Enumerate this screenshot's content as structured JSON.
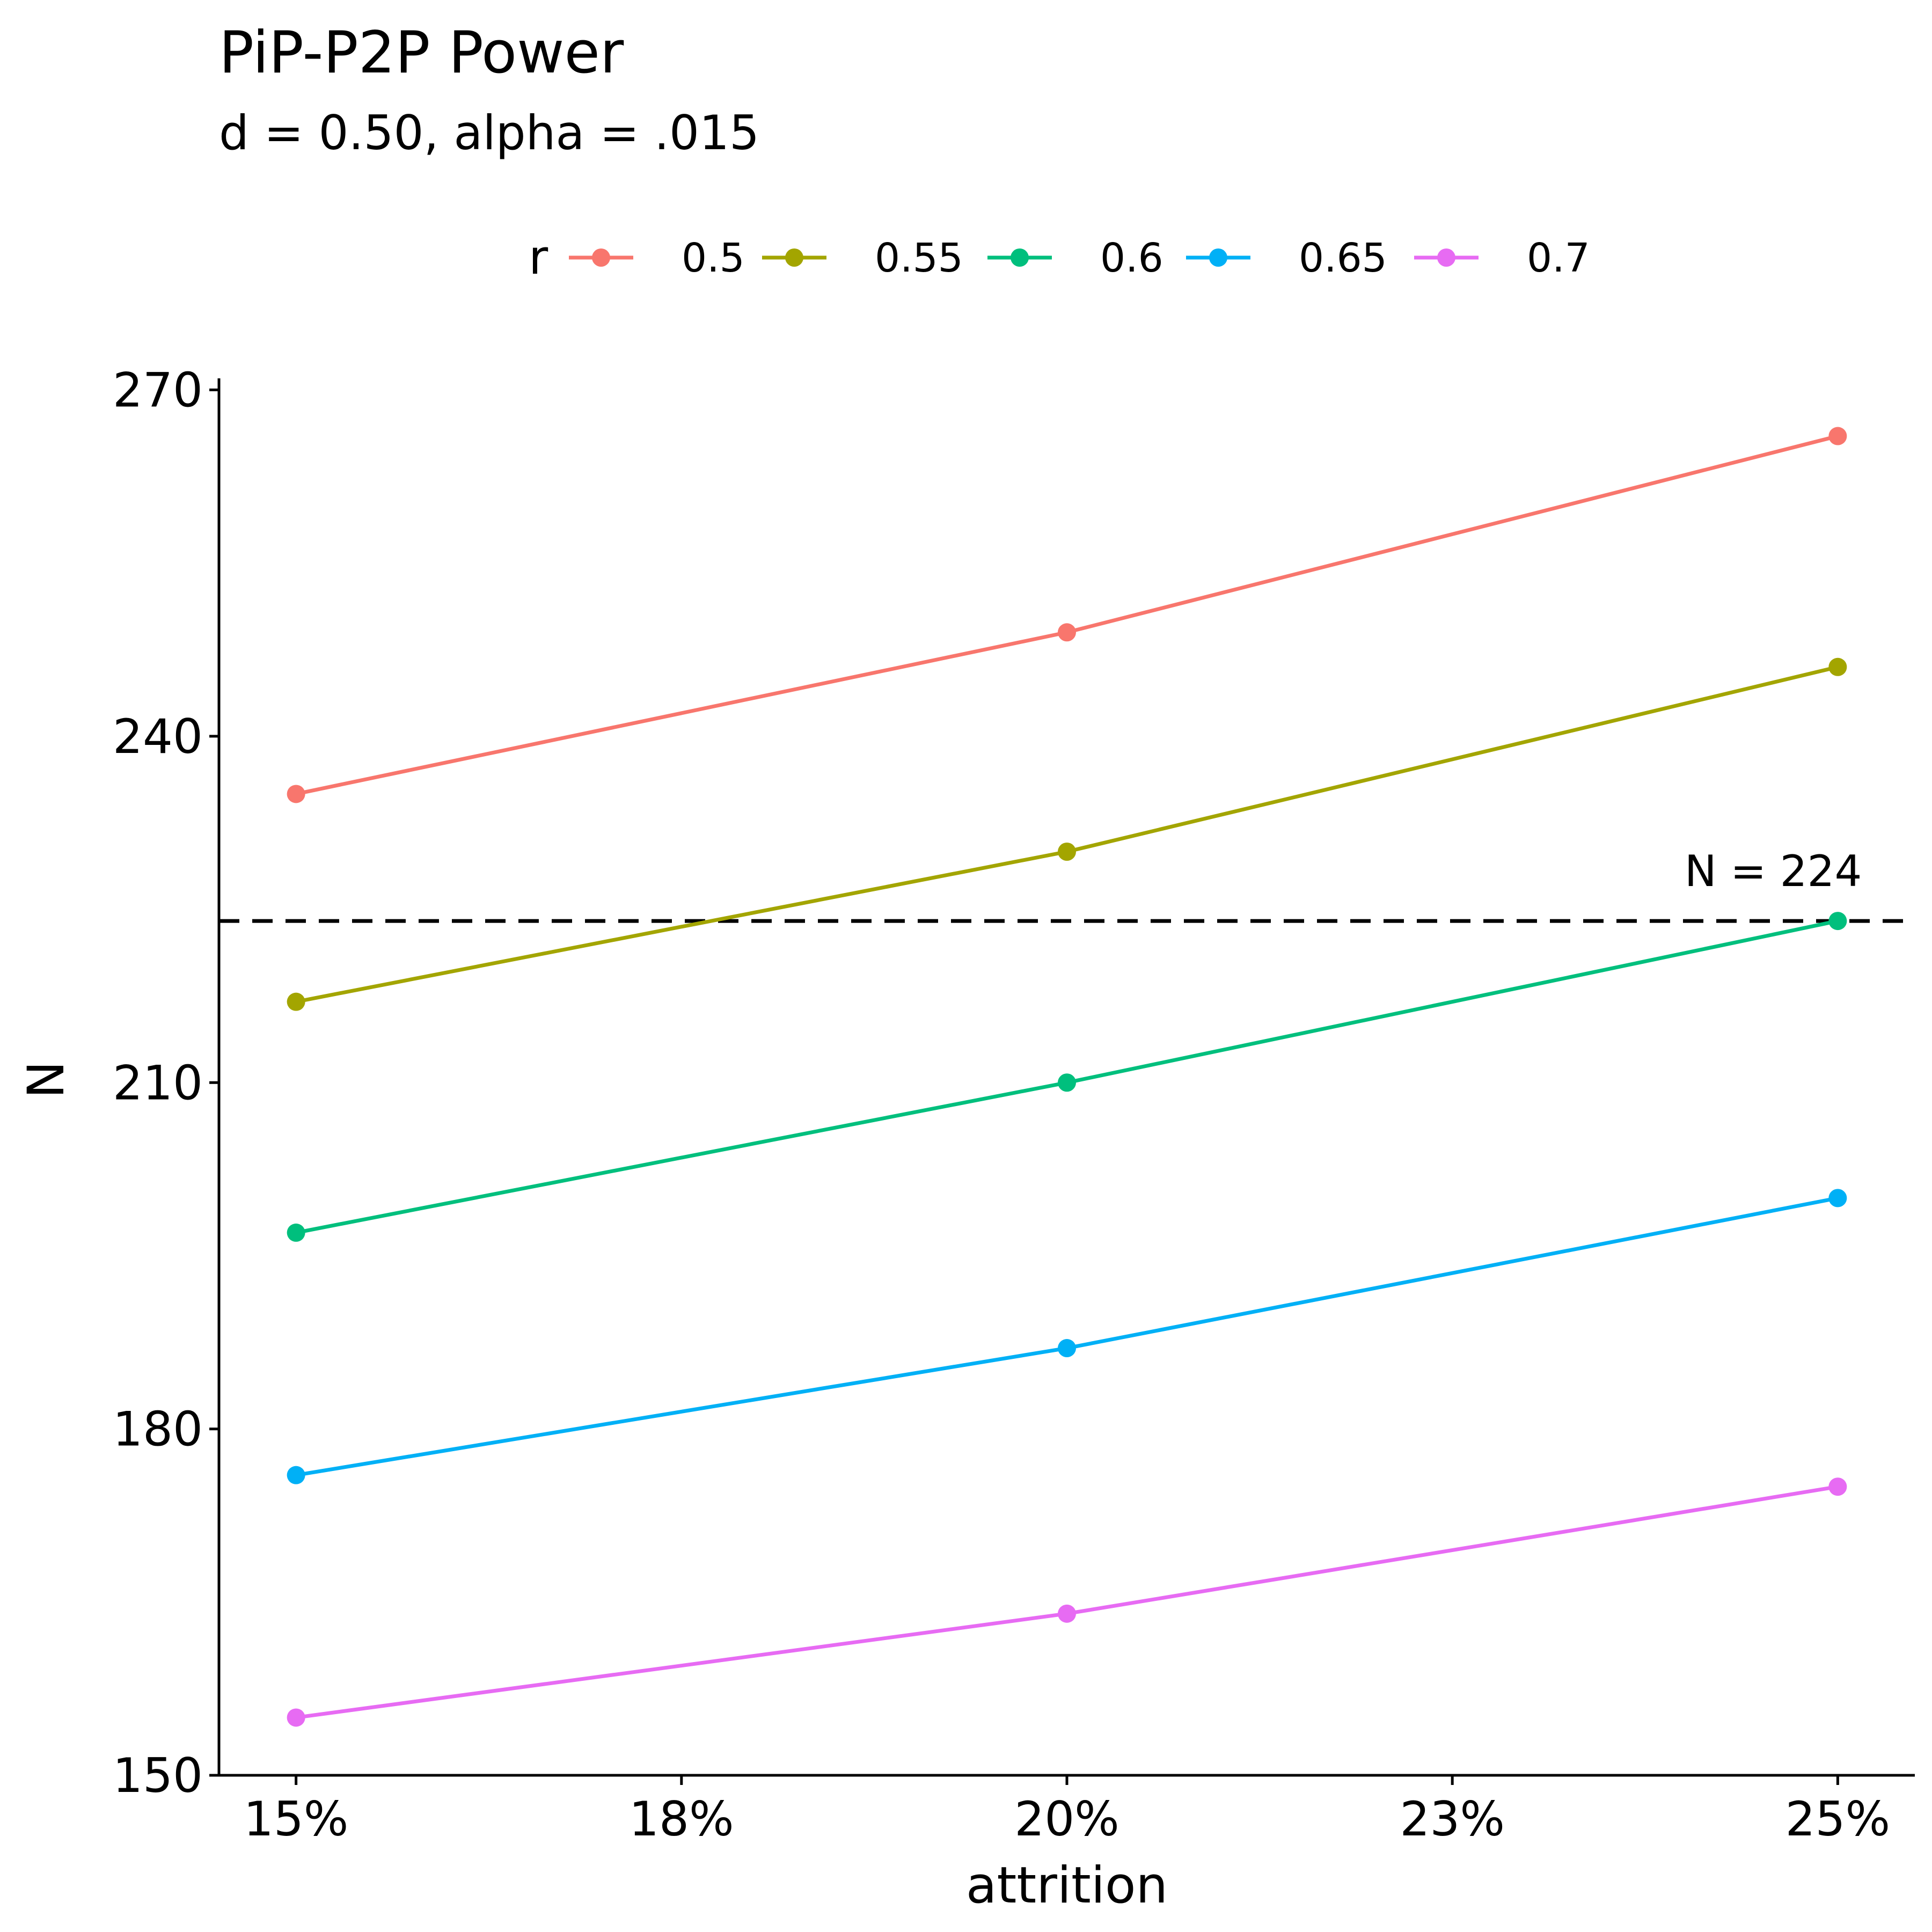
{
  "chart_data": {
    "type": "line",
    "title": "PiP-P2P Power",
    "subtitle": "d = 0.50, alpha = .015",
    "xlabel": "attrition",
    "ylabel": "N",
    "legend_title": "r",
    "legend_position": "top",
    "grid": false,
    "x": [
      0.15,
      0.2,
      0.25
    ],
    "xlim": [
      0.145,
      0.255
    ],
    "ylim": [
      150,
      271
    ],
    "x_ticks": [
      {
        "value": 0.15,
        "label": "15%"
      },
      {
        "value": 0.175,
        "label": "18%"
      },
      {
        "value": 0.2,
        "label": "20%"
      },
      {
        "value": 0.225,
        "label": "23%"
      },
      {
        "value": 0.25,
        "label": "25%"
      }
    ],
    "y_ticks": [
      {
        "value": 150,
        "label": "150"
      },
      {
        "value": 180,
        "label": "180"
      },
      {
        "value": 210,
        "label": "210"
      },
      {
        "value": 240,
        "label": "240"
      },
      {
        "value": 270,
        "label": "270"
      }
    ],
    "series": [
      {
        "name": "0.5",
        "color": "#F8766D",
        "values": [
          235,
          249,
          266
        ]
      },
      {
        "name": "0.55",
        "color": "#A3A500",
        "values": [
          217,
          230,
          246
        ]
      },
      {
        "name": "0.6",
        "color": "#00BF7D",
        "values": [
          197,
          210,
          224
        ]
      },
      {
        "name": "0.65",
        "color": "#00B0F6",
        "values": [
          176,
          187,
          200
        ]
      },
      {
        "name": "0.7",
        "color": "#E76BF3",
        "values": [
          155,
          164,
          175
        ]
      }
    ],
    "reference_line": {
      "y": 224,
      "style": "dashed",
      "label": "N = 224"
    }
  }
}
